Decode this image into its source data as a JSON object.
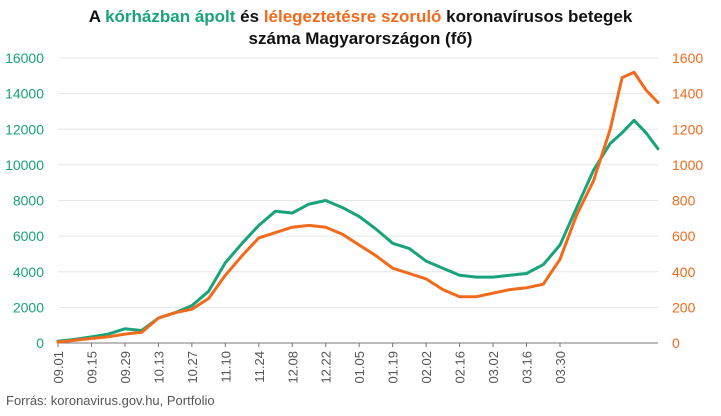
{
  "title": {
    "prefix": "A ",
    "series1": "kórházban ápolt",
    "middle": " és ",
    "series2": "lélegeztetésre szoruló",
    "suffix": " koronavírusos betegek",
    "line2": "száma Magyarországon  (fő)"
  },
  "source": "Forrás: koronavirus.gov.hu, Portfolio",
  "colors": {
    "hospitalized": "#1aa37a",
    "ventilated": "#f26a1b",
    "grid": "#e6e6e6",
    "axis": "#777777"
  },
  "chart_data": {
    "type": "line",
    "title": "A kórházban ápolt és lélegeztetésre szoruló koronavírusos betegek száma Magyarországon  (fő)",
    "x_ticks": [
      "09.01",
      "09.15",
      "09.29",
      "10.13",
      "10.27",
      "11.10",
      "11.24",
      "12.08",
      "12.22",
      "01.05",
      "01.19",
      "02.02",
      "02.16",
      "03.02",
      "03.16",
      "03.30"
    ],
    "y_left": {
      "ticks": [
        "0",
        "2000",
        "4000",
        "6000",
        "8000",
        "10000",
        "12000",
        "14000",
        "16000"
      ],
      "range": [
        0,
        16000
      ]
    },
    "y_right": {
      "ticks": [
        "0",
        "200",
        "400",
        "600",
        "800",
        "1000",
        "1200",
        "1400",
        "1600"
      ],
      "range": [
        0,
        1600
      ]
    },
    "grid": true,
    "series": [
      {
        "name": "kórházban ápolt",
        "axis": "left",
        "x": [
          0,
          7,
          14,
          21,
          28,
          35,
          42,
          49,
          56,
          63,
          70,
          77,
          84,
          91,
          98,
          105,
          112,
          119,
          126,
          133,
          140,
          147,
          154,
          161,
          168,
          175,
          182,
          189,
          196,
          203,
          210,
          217,
          224,
          231,
          236,
          241,
          246,
          251
        ],
        "values": [
          100,
          200,
          350,
          500,
          800,
          700,
          1400,
          1700,
          2100,
          2900,
          4500,
          5600,
          6600,
          7400,
          7300,
          7800,
          8000,
          7600,
          7100,
          6400,
          5600,
          5300,
          4600,
          4200,
          3800,
          3700,
          3700,
          3800,
          3900,
          4400,
          5500,
          7600,
          9700,
          11200,
          11800,
          12500,
          11800,
          10900
        ]
      },
      {
        "name": "lélegeztetésre szoruló",
        "axis": "right",
        "x": [
          0,
          7,
          14,
          21,
          28,
          35,
          42,
          49,
          56,
          63,
          70,
          77,
          84,
          91,
          98,
          105,
          112,
          119,
          126,
          133,
          140,
          147,
          154,
          161,
          168,
          175,
          182,
          189,
          196,
          203,
          210,
          217,
          224,
          231,
          236,
          241,
          246,
          251
        ],
        "values": [
          5,
          15,
          25,
          35,
          50,
          60,
          140,
          170,
          190,
          250,
          380,
          490,
          590,
          620,
          650,
          660,
          650,
          610,
          550,
          490,
          420,
          390,
          360,
          300,
          260,
          260,
          280,
          300,
          310,
          330,
          470,
          720,
          910,
          1200,
          1490,
          1520,
          1420,
          1350
        ]
      }
    ]
  }
}
